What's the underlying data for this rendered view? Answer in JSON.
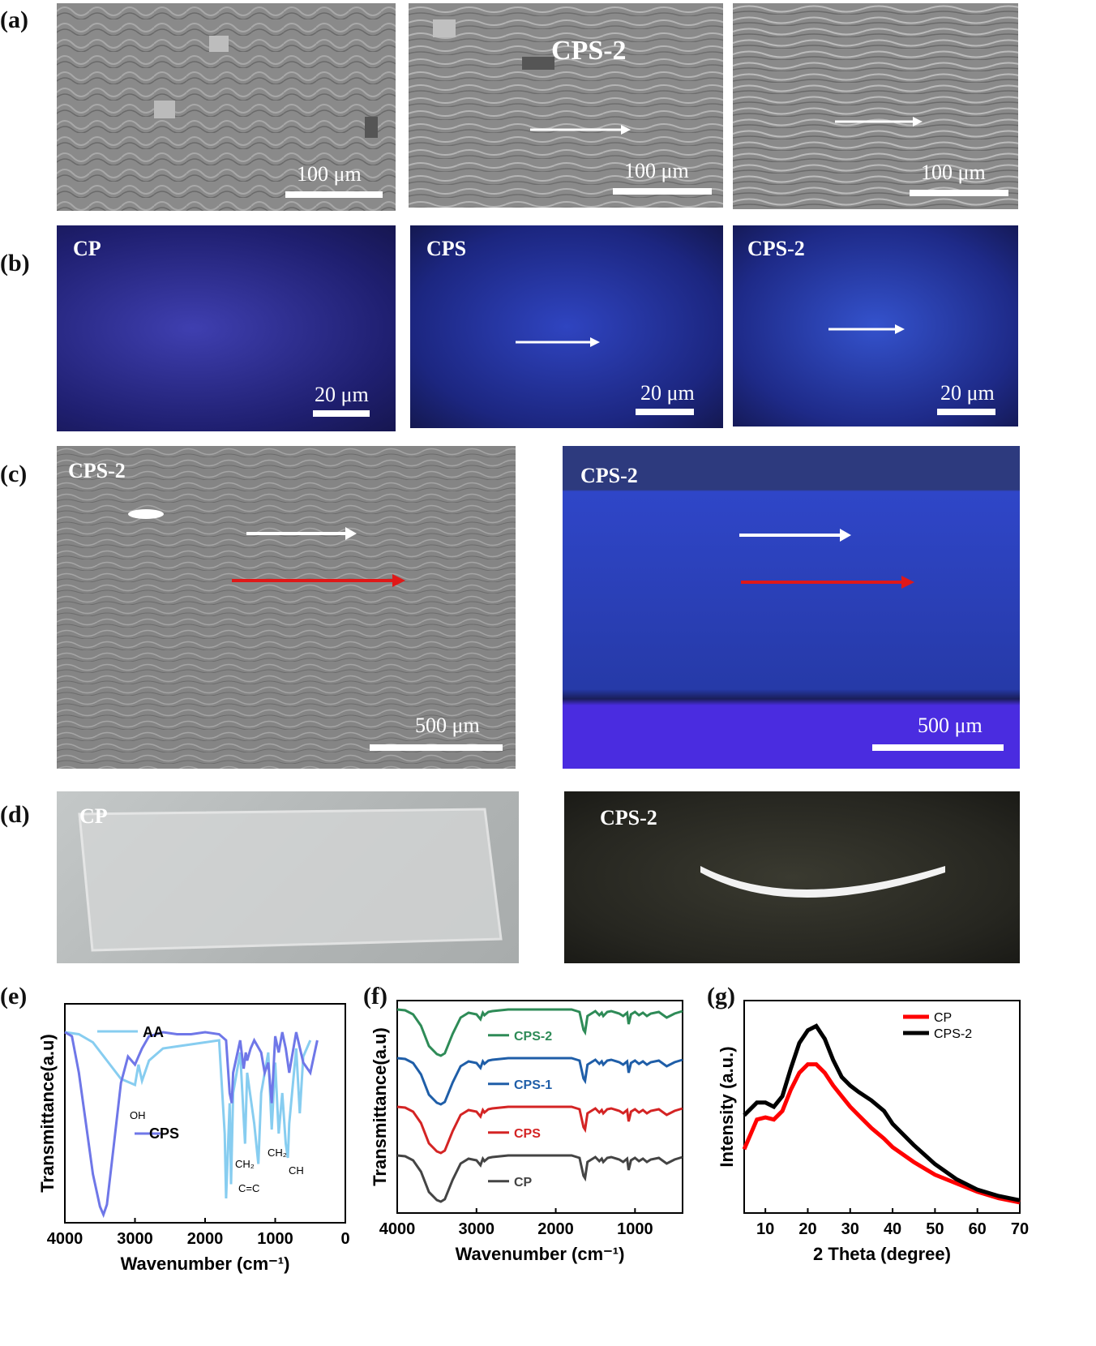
{
  "panels": {
    "a": "(a)",
    "b": "(b)",
    "c": "(c)",
    "d": "(d)",
    "e": "(e)",
    "f": "(f)",
    "g": "(g)"
  },
  "a": {
    "img2_label": "CPS-2",
    "scale": "100 μm"
  },
  "b": {
    "labels": [
      "CP",
      "CPS",
      "CPS-2"
    ],
    "scale": "20 μm"
  },
  "c": {
    "labels": [
      "CPS-2",
      "CPS-2"
    ],
    "scale": "500 μm"
  },
  "d": {
    "labels": [
      "CP",
      "CPS-2"
    ]
  },
  "colors": {
    "white_arrow": "#ffffff",
    "red_arrow": "#e01818",
    "AA": "#87cdf0",
    "CPS_e": "#6f77e8",
    "CPS-2": "#2e8b57",
    "CPS-1": "#1f5ea8",
    "CPS": "#d42424",
    "CP": "#444444",
    "g_CP": "#ff0000",
    "g_CPS2": "#000000"
  },
  "chart_data": [
    {
      "panel": "e",
      "type": "line",
      "xlabel": "Wavenumber (cm⁻¹)",
      "ylabel": "Transmittance(a.u)",
      "xlim": [
        4000,
        0
      ],
      "xticks": [
        "4000",
        "3000",
        "2000",
        "1000",
        "0"
      ],
      "series": [
        {
          "name": "AA",
          "x": [
            4000,
            3800,
            3600,
            3400,
            3200,
            3000,
            2950,
            2900,
            2800,
            2600,
            2400,
            2200,
            2000,
            1800,
            1720,
            1700,
            1650,
            1630,
            1600,
            1500,
            1430,
            1400,
            1300,
            1240,
            1200,
            1100,
            1050,
            1000,
            950,
            900,
            850,
            820,
            800,
            700,
            650,
            600,
            500
          ],
          "y": [
            0.9,
            0.89,
            0.85,
            0.76,
            0.67,
            0.64,
            0.74,
            0.66,
            0.76,
            0.82,
            0.83,
            0.84,
            0.85,
            0.86,
            0.4,
            0.08,
            0.55,
            0.15,
            0.6,
            0.8,
            0.35,
            0.7,
            0.45,
            0.25,
            0.6,
            0.8,
            0.42,
            0.75,
            0.4,
            0.6,
            0.35,
            0.28,
            0.45,
            0.82,
            0.5,
            0.78,
            0.86
          ]
        },
        {
          "name": "CPS",
          "x": [
            4000,
            3900,
            3800,
            3700,
            3600,
            3500,
            3450,
            3400,
            3300,
            3200,
            3100,
            3000,
            2950,
            2900,
            2800,
            2600,
            2400,
            2200,
            2000,
            1800,
            1700,
            1650,
            1620,
            1600,
            1500,
            1450,
            1420,
            1400,
            1350,
            1300,
            1200,
            1150,
            1100,
            1050,
            1000,
            950,
            900,
            850,
            800,
            700,
            600,
            500,
            400
          ],
          "y": [
            0.9,
            0.88,
            0.7,
            0.45,
            0.2,
            0.04,
            0.0,
            0.05,
            0.35,
            0.65,
            0.78,
            0.74,
            0.78,
            0.82,
            0.88,
            0.9,
            0.89,
            0.89,
            0.9,
            0.89,
            0.86,
            0.6,
            0.55,
            0.7,
            0.86,
            0.72,
            0.8,
            0.76,
            0.82,
            0.86,
            0.8,
            0.7,
            0.75,
            0.55,
            0.88,
            0.8,
            0.9,
            0.82,
            0.7,
            0.9,
            0.75,
            0.7,
            0.86
          ]
        }
      ],
      "annotations": [
        "OH",
        "CH₂",
        "C=C",
        "CH₂",
        "CH"
      ]
    },
    {
      "panel": "f",
      "type": "line",
      "xlabel": "Wavenumber (cm⁻¹)",
      "ylabel": "Transmittance(a.u)",
      "xlim": [
        4000,
        400
      ],
      "xticks": [
        "4000",
        "3000",
        "2000",
        "1000"
      ],
      "series": [
        {
          "name": "CPS-2",
          "offset": 3
        },
        {
          "name": "CPS-1",
          "offset": 2
        },
        {
          "name": "CPS",
          "offset": 1
        },
        {
          "name": "CP",
          "offset": 0
        }
      ],
      "shape": {
        "x": [
          4000,
          3900,
          3800,
          3700,
          3600,
          3500,
          3450,
          3400,
          3300,
          3200,
          3100,
          3000,
          2950,
          2920,
          2900,
          2850,
          2800,
          2600,
          2400,
          2200,
          2000,
          1800,
          1700,
          1650,
          1630,
          1600,
          1500,
          1450,
          1420,
          1400,
          1350,
          1300,
          1200,
          1150,
          1100,
          1080,
          1050,
          1000,
          950,
          900,
          850,
          800,
          700,
          600,
          500,
          400
        ],
        "y": [
          1.0,
          0.99,
          0.94,
          0.8,
          0.55,
          0.45,
          0.43,
          0.46,
          0.7,
          0.9,
          0.96,
          0.94,
          0.88,
          0.96,
          0.93,
          0.97,
          0.98,
          1.0,
          1.0,
          1.0,
          1.0,
          1.0,
          0.97,
          0.75,
          0.72,
          0.92,
          0.98,
          0.93,
          0.96,
          0.92,
          0.97,
          0.98,
          0.95,
          0.92,
          0.96,
          0.82,
          0.94,
          0.97,
          0.93,
          0.96,
          0.92,
          0.95,
          0.97,
          0.9,
          0.95,
          0.98
        ]
      }
    },
    {
      "panel": "g",
      "type": "line",
      "xlabel": "2 Theta (degree)",
      "ylabel": "Intensity (a.u.)",
      "xlim": [
        5,
        70
      ],
      "xticks": [
        "10",
        "20",
        "30",
        "40",
        "50",
        "60",
        "70"
      ],
      "series": [
        {
          "name": "CP",
          "x": [
            5,
            8,
            10,
            12,
            14,
            16,
            18,
            20,
            22,
            24,
            26,
            28,
            30,
            32,
            35,
            38,
            40,
            45,
            50,
            55,
            60,
            65,
            70
          ],
          "y": [
            0.3,
            0.44,
            0.45,
            0.44,
            0.48,
            0.58,
            0.66,
            0.7,
            0.7,
            0.66,
            0.6,
            0.55,
            0.5,
            0.46,
            0.4,
            0.35,
            0.31,
            0.24,
            0.18,
            0.14,
            0.1,
            0.07,
            0.05
          ]
        },
        {
          "name": "CPS-2",
          "x": [
            5,
            8,
            10,
            12,
            14,
            16,
            18,
            20,
            22,
            24,
            26,
            28,
            30,
            32,
            35,
            38,
            40,
            45,
            50,
            55,
            60,
            65,
            70
          ],
          "y": [
            0.46,
            0.52,
            0.52,
            0.5,
            0.55,
            0.68,
            0.8,
            0.86,
            0.88,
            0.82,
            0.72,
            0.64,
            0.6,
            0.57,
            0.53,
            0.48,
            0.42,
            0.32,
            0.23,
            0.16,
            0.11,
            0.08,
            0.06
          ]
        }
      ]
    }
  ]
}
